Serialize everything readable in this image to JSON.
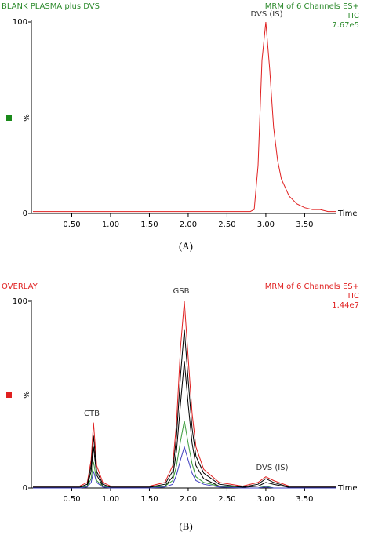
{
  "chart_data": [
    {
      "type": "line",
      "title": "BLANK PLASMA plus DVS",
      "title_color": "#2e8b2e",
      "info": [
        "MRM of 6 Channels ES+",
        "TIC",
        "7.67e5"
      ],
      "annotations": [
        "DVS (IS)"
      ],
      "y_label": "%",
      "x_label": "Time",
      "caption": "(A)",
      "marker_color": "#1a8a1a",
      "x": [
        0,
        0.5,
        1,
        1.5,
        2,
        2.5,
        2.8,
        2.85,
        2.9,
        2.95,
        3.0,
        3.05,
        3.1,
        3.15,
        3.2,
        3.3,
        3.4,
        3.5,
        3.6,
        3.7,
        3.8,
        3.9
      ],
      "series": [
        {
          "color": "#e02020",
          "values": [
            1,
            1,
            1,
            1,
            1,
            1,
            1,
            2,
            25,
            80,
            100,
            75,
            45,
            28,
            18,
            9,
            5,
            3,
            2,
            2,
            1,
            1
          ]
        }
      ],
      "xlim": [
        0,
        3.9
      ],
      "ylim": [
        0,
        100
      ],
      "xticks": [
        {
          "value": 0.5,
          "label": "0.50"
        },
        {
          "value": 1,
          "label": "1.00"
        },
        {
          "value": 1.5,
          "label": "1.50"
        },
        {
          "value": 2,
          "label": "2.00"
        },
        {
          "value": 2.5,
          "label": "2.50"
        },
        {
          "value": 3,
          "label": "3.00"
        },
        {
          "value": 3.5,
          "label": "3.50"
        }
      ],
      "yticks": [
        0,
        100
      ]
    },
    {
      "type": "line",
      "title": "OVERLAY",
      "title_color": "#e02020",
      "info": [
        "MRM of 6 Channels ES+",
        "TIC",
        "1.44e7"
      ],
      "annotations": [
        "GSB",
        "CTB",
        "DVS (IS)"
      ],
      "y_label": "%",
      "x_label": "Time",
      "caption": "(B)",
      "marker_color": "#e02020",
      "x": [
        0,
        0.5,
        0.6,
        0.7,
        0.75,
        0.78,
        0.82,
        0.9,
        1.0,
        1.5,
        1.7,
        1.8,
        1.85,
        1.9,
        1.95,
        2.0,
        2.05,
        2.1,
        2.2,
        2.4,
        2.7,
        2.9,
        3.0,
        3.1,
        3.3,
        3.6,
        3.9
      ],
      "series": [
        {
          "color": "#e02020",
          "values": [
            1,
            1,
            1,
            3,
            15,
            35,
            12,
            3,
            1,
            1,
            3,
            12,
            35,
            75,
            100,
            70,
            40,
            22,
            10,
            3,
            1,
            3,
            6,
            4,
            1,
            1,
            1
          ]
        },
        {
          "color": "#000000",
          "values": [
            0.5,
            0.5,
            0.5,
            2,
            12,
            28,
            9,
            2,
            0.5,
            0.5,
            2,
            9,
            28,
            60,
            85,
            58,
            32,
            17,
            8,
            2,
            0.5,
            2,
            5,
            3,
            0.5,
            0.5,
            0.5
          ]
        },
        {
          "color": "#000000",
          "values": [
            0.3,
            0.3,
            0.3,
            1,
            9,
            22,
            7,
            1,
            0.3,
            0.3,
            1,
            6,
            20,
            45,
            68,
            45,
            24,
            12,
            5,
            1,
            0.3,
            1,
            3,
            2,
            0.3,
            0.3,
            0.3
          ]
        },
        {
          "color": "#3a9a3a",
          "values": [
            0,
            0,
            0,
            1,
            5,
            14,
            4,
            1,
            0,
            0,
            1,
            4,
            12,
            25,
            36,
            24,
            13,
            6,
            3,
            1,
            0,
            0,
            1,
            0,
            0,
            0,
            0
          ]
        },
        {
          "color": "#4040c0",
          "values": [
            0,
            0,
            0,
            0.5,
            3,
            9,
            3,
            0.5,
            0,
            0,
            0.5,
            2,
            7,
            15,
            22,
            15,
            8,
            4,
            2,
            0.5,
            0,
            0,
            0.5,
            0,
            0,
            0,
            0
          ]
        }
      ],
      "xlim": [
        0,
        3.9
      ],
      "ylim": [
        0,
        100
      ],
      "xticks": [
        {
          "value": 0.5,
          "label": "0.50"
        },
        {
          "value": 1,
          "label": "1.00"
        },
        {
          "value": 1.5,
          "label": "1.50"
        },
        {
          "value": 2,
          "label": "2.00"
        },
        {
          "value": 2.5,
          "label": "2.50"
        },
        {
          "value": 3,
          "label": "3.00"
        },
        {
          "value": 3.5,
          "label": "3.50"
        }
      ],
      "yticks": [
        0,
        100
      ]
    }
  ]
}
